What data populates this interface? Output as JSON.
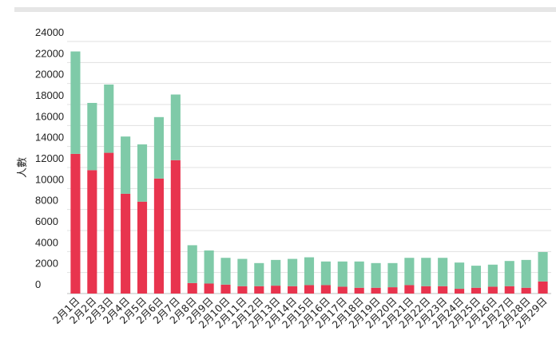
{
  "chart_data": {
    "type": "bar",
    "stacked": true,
    "title": "",
    "xlabel": "",
    "ylabel": "人數",
    "ylim": [
      0,
      24000
    ],
    "yticks": [
      0,
      2000,
      4000,
      6000,
      8000,
      10000,
      12000,
      14000,
      16000,
      18000,
      20000,
      22000,
      24000
    ],
    "grid": true,
    "legend": "none",
    "categories": [
      "2月1日",
      "2月2日",
      "2月3日",
      "2月4日",
      "2月5日",
      "2月6日",
      "2月7日",
      "2月8日",
      "2月9日",
      "2月10日",
      "2月11日",
      "2月12日",
      "2月13日",
      "2月14日",
      "2月15日",
      "2月16日",
      "2月17日",
      "2月18日",
      "2月19日",
      "2月20日",
      "2月21日",
      "2月22日",
      "2月23日",
      "2月24日",
      "2月25日",
      "2月26日",
      "2月27日",
      "2月28日",
      "2月29日"
    ],
    "series": [
      {
        "color": "#e8344e",
        "values": [
          13300,
          11750,
          13400,
          9500,
          8750,
          10950,
          12700,
          1000,
          950,
          850,
          700,
          700,
          750,
          700,
          800,
          800,
          650,
          550,
          550,
          600,
          800,
          700,
          700,
          450,
          550,
          650,
          700,
          550,
          1150
        ]
      },
      {
        "color": "#7fcaa8",
        "values": [
          9750,
          6400,
          6500,
          5450,
          5450,
          5850,
          6250,
          3600,
          3150,
          2550,
          2600,
          2200,
          2450,
          2600,
          2650,
          2250,
          2400,
          2500,
          2350,
          2300,
          2600,
          2700,
          2700,
          2500,
          2100,
          2100,
          2400,
          2650,
          2800
        ]
      }
    ]
  }
}
